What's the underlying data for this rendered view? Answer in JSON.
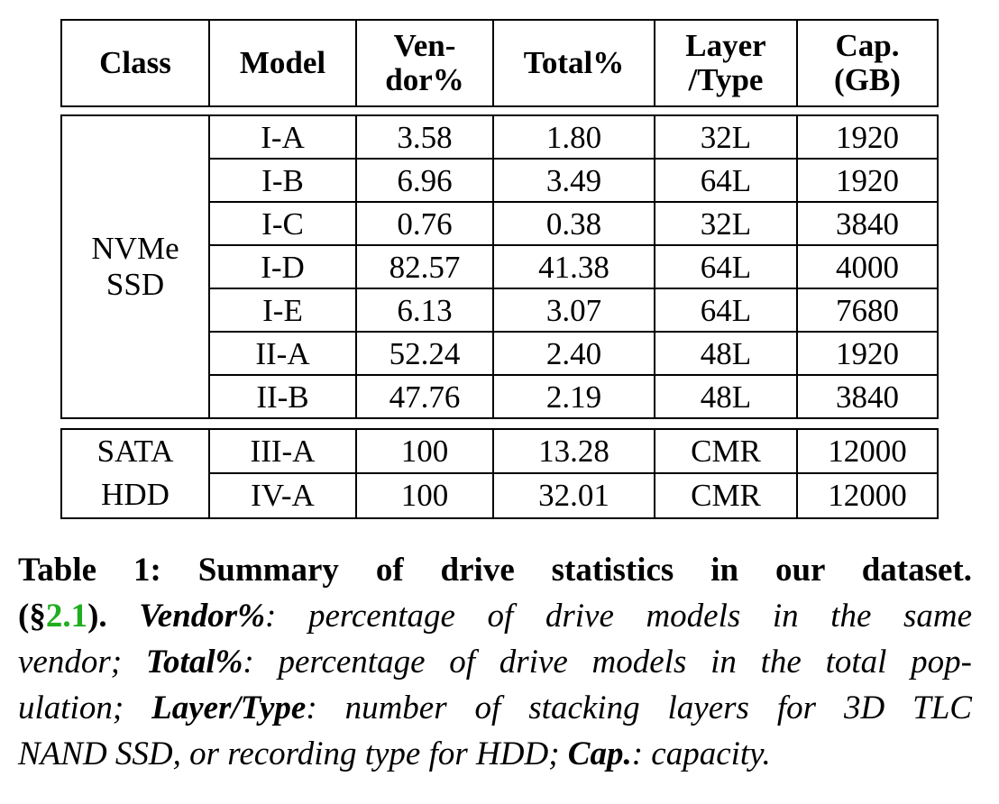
{
  "table": {
    "headers": [
      [
        "Class"
      ],
      [
        "Model"
      ],
      [
        "Ven-",
        "dor%"
      ],
      [
        "Total%"
      ],
      [
        "Layer",
        "/Type"
      ],
      [
        "Cap.",
        "(GB)"
      ]
    ],
    "groups": [
      {
        "class_lines": [
          "NVMe",
          "SSD"
        ],
        "rows": [
          [
            "I-A",
            "3.58",
            "1.80",
            "32L",
            "1920"
          ],
          [
            "I-B",
            "6.96",
            "3.49",
            "64L",
            "1920"
          ],
          [
            "I-C",
            "0.76",
            "0.38",
            "32L",
            "3840"
          ],
          [
            "I-D",
            "82.57",
            "41.38",
            "64L",
            "4000"
          ],
          [
            "I-E",
            "6.13",
            "3.07",
            "64L",
            "7680"
          ],
          [
            "II-A",
            "52.24",
            "2.40",
            "48L",
            "1920"
          ],
          [
            "II-B",
            "47.76",
            "2.19",
            "48L",
            "3840"
          ]
        ]
      },
      {
        "class_lines": [
          "SATA",
          "HDD"
        ],
        "rows": [
          [
            "III-A",
            "100",
            "13.28",
            "CMR",
            "12000"
          ],
          [
            "IV-A",
            "100",
            "32.01",
            "CMR",
            "12000"
          ]
        ]
      }
    ]
  },
  "caption": {
    "title": "Table 1:  Summary of drive statistics in our dataset.",
    "ref_open": "(§",
    "ref_link": "2.1",
    "ref_close": ").",
    "term_vendor": "Vendor%",
    "def_vendor_a": ": percentage of drive models in the same",
    "def_vendor_b": "vendor; ",
    "term_total": "Total%",
    "def_total_a": ": percentage of drive models in the total pop-",
    "def_total_b": "ulation; ",
    "term_layer": "Layer/Type",
    "def_layer_a": ": number of stacking layers for 3D TLC",
    "def_layer_b": "NAND SSD, or recording type for HDD; ",
    "term_cap": "Cap.",
    "def_cap": ": capacity."
  },
  "colors": {
    "reference_link": "#1fae1f"
  }
}
